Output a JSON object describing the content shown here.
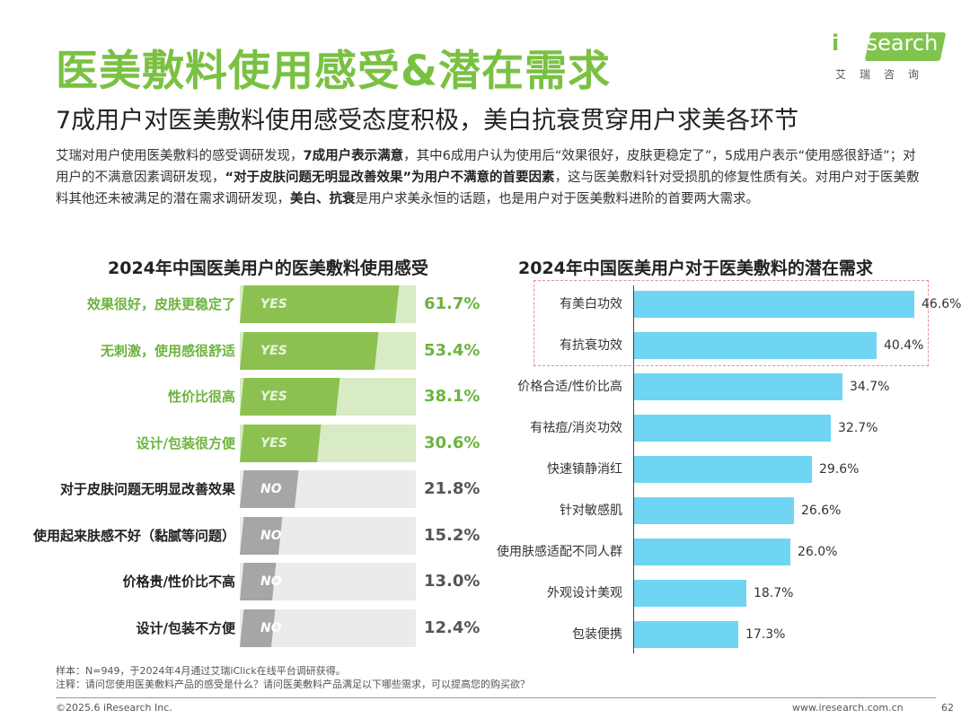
{
  "title": "医美敷料使用感受&潜在需求",
  "subtitle": "7成用户对医美敷料使用感受态度积极，美白抗衰贯穿用户求美各环节",
  "intro": {
    "p1": "艾瑞对用户使用医美敷料的感受调研发现，",
    "b1": "7成用户表示满意",
    "p2": "，其中6成用户认为使用后“效果很好，皮肤更稳定了”，5成用户表示“使用感很舒适”；对用户的不满意因素调研发现，",
    "b2": "“对于皮肤问题无明显改善效果”为用户不满意的首要因素",
    "p3": "，这与医美敷料针对受损肌的修复性质有关。对用户对于医美敷料其他还未被满足的潜在需求调研发现，",
    "b3": "美白、抗衰",
    "p4": "是用户求美永恒的话题，也是用户对于医美敷料进阶的首要两大需求。"
  },
  "logo": {
    "brand_i": "i",
    "brand_rest": "Research",
    "sub": "艾瑞咨询"
  },
  "colors": {
    "accent_green": "#7ac143",
    "yes_dark": "#8cc152",
    "yes_light": "#d8ebc4",
    "no_dark": "#a6a6a6",
    "no_light": "#ebebeb",
    "bar_blue": "#6fd5f2",
    "highlight_border": "#e88d9a"
  },
  "chart_data": [
    {
      "type": "bar",
      "title": "2024年中国医美用户的医美敷料使用感受",
      "categories": [
        "效果很好，皮肤更稳定了",
        "无刺激，使用感很舒适",
        "性价比很高",
        "设计/包装很方便",
        "对于皮肤问题无明显改善效果",
        "使用起来肤感不好（黏腻等问题）",
        "价格贵/性价比不高",
        "设计/包装不方便"
      ],
      "values": [
        61.7,
        53.4,
        38.1,
        30.6,
        21.8,
        15.2,
        13.0,
        12.4
      ],
      "value_labels": [
        "61.7%",
        "53.4%",
        "38.1%",
        "30.6%",
        "21.8%",
        "15.2%",
        "13.0%",
        "12.4%"
      ],
      "tags": [
        "YES",
        "YES",
        "YES",
        "YES",
        "NO",
        "NO",
        "NO",
        "NO"
      ],
      "unit": "%"
    },
    {
      "type": "bar",
      "orientation": "horizontal",
      "title": "2024年中国医美用户对于医美敷料的潜在需求",
      "categories": [
        "有美白功效",
        "有抗衰功效",
        "价格合适/性价比高",
        "有祛痘/消炎功效",
        "快速镇静消红",
        "针对敏感肌",
        "使用肤感适配不同人群",
        "外观设计美观",
        "包装便携"
      ],
      "values": [
        46.6,
        40.4,
        34.7,
        32.7,
        29.6,
        26.6,
        26.0,
        18.7,
        17.3
      ],
      "value_labels": [
        "46.6%",
        "40.4%",
        "34.7%",
        "32.7%",
        "29.6%",
        "26.6%",
        "26.0%",
        "18.7%",
        "17.3%"
      ],
      "highlighted": [
        "有美白功效",
        "有抗衰功效"
      ],
      "unit": "%"
    }
  ],
  "notes": {
    "sample": "样本：N=949，于2024年4月通过艾瑞iClick在线平台调研获得。",
    "note": "注释：请问您使用医美敷料产品的感受是什么？请问医美敷料产品满足以下哪些需求，可以提高您的购买欲？"
  },
  "footer": {
    "copyright": "©2025.6 iResearch Inc.",
    "website": "www.iresearch.com.cn",
    "page": "62"
  }
}
